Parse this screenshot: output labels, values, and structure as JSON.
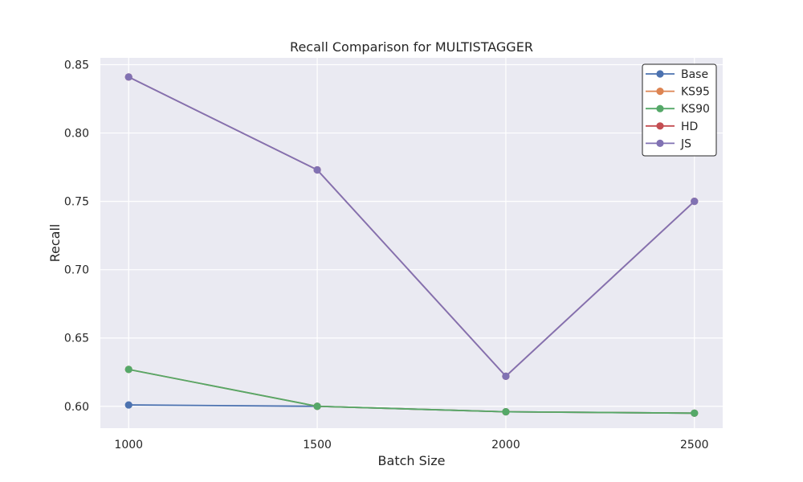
{
  "chart_data": {
    "type": "line",
    "title": "Recall Comparison for MULTISTAGGER",
    "xlabel": "Batch Size",
    "ylabel": "Recall",
    "x": [
      1000,
      1500,
      2000,
      2500
    ],
    "x_tick_labels": [
      "1000",
      "1500",
      "2000",
      "2500"
    ],
    "y_ticks": [
      0.6,
      0.65,
      0.7,
      0.75,
      0.8,
      0.85
    ],
    "y_tick_labels": [
      "0.60",
      "0.65",
      "0.70",
      "0.75",
      "0.80",
      "0.85"
    ],
    "xlim": [
      925,
      2575
    ],
    "ylim": [
      0.584,
      0.855
    ],
    "grid": true,
    "legend_position": "top-right",
    "background": "#EAEAF2",
    "series": [
      {
        "name": "Base",
        "color": "#4C72B0",
        "values": [
          0.601,
          0.6,
          0.596,
          0.595
        ]
      },
      {
        "name": "KS95",
        "color": "#DD8452",
        "values": [
          0.627,
          0.6,
          0.596,
          0.595
        ]
      },
      {
        "name": "KS90",
        "color": "#55A868",
        "values": [
          0.627,
          0.6,
          0.596,
          0.595
        ]
      },
      {
        "name": "HD",
        "color": "#C44E52",
        "values": [
          0.841,
          0.773,
          0.622,
          0.75
        ]
      },
      {
        "name": "JS",
        "color": "#8172B3",
        "values": [
          0.841,
          0.773,
          0.622,
          0.75
        ]
      }
    ]
  }
}
